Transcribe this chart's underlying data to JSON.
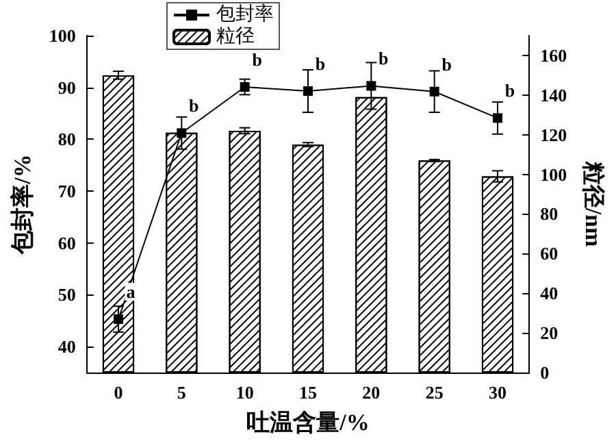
{
  "chart_data": {
    "type": "bar",
    "xlabel": "吐温含量/%",
    "ylabel": "包封率/%",
    "y2label": "粒径/nm",
    "categories": [
      "0",
      "5",
      "10",
      "15",
      "20",
      "25",
      "30"
    ],
    "series": [
      {
        "name": "包封率",
        "type": "line",
        "color": "#000000",
        "marker": "square",
        "values": [
          45.3,
          81.2,
          90.1,
          89.3,
          90.3,
          89.2,
          84.1
        ],
        "errors": [
          2.5,
          3.1,
          1.5,
          4.1,
          4.5,
          4.0,
          3.1
        ]
      },
      {
        "name": "粒径",
        "axis": "y2",
        "color": "#000000",
        "values": [
          150,
          121,
          122,
          115,
          139,
          107,
          99
        ],
        "errors": [
          2,
          null,
          1.5,
          1,
          null,
          0.5,
          2.8
        ]
      }
    ],
    "ylim": [
      35,
      100
    ],
    "yticks": [
      40,
      50,
      60,
      70,
      80,
      90,
      100
    ],
    "y2lim": [
      0,
      170
    ],
    "y2ticks": [
      0,
      20,
      40,
      60,
      80,
      100,
      120,
      140,
      160
    ],
    "annotations": [
      {
        "text": "a",
        "x": "0",
        "y": 45.3
      },
      {
        "text": "b",
        "x": "5",
        "y": 81.2
      },
      {
        "text": "b",
        "x": "10",
        "y": 90.1
      },
      {
        "text": "b",
        "x": "15",
        "y": 89.3
      },
      {
        "text": "b",
        "x": "20",
        "y": 90.3
      },
      {
        "text": "b",
        "x": "25",
        "y": 89.2
      },
      {
        "text": "b",
        "x": "30",
        "y": 84.1
      }
    ],
    "grid": false,
    "legend": "top left"
  }
}
